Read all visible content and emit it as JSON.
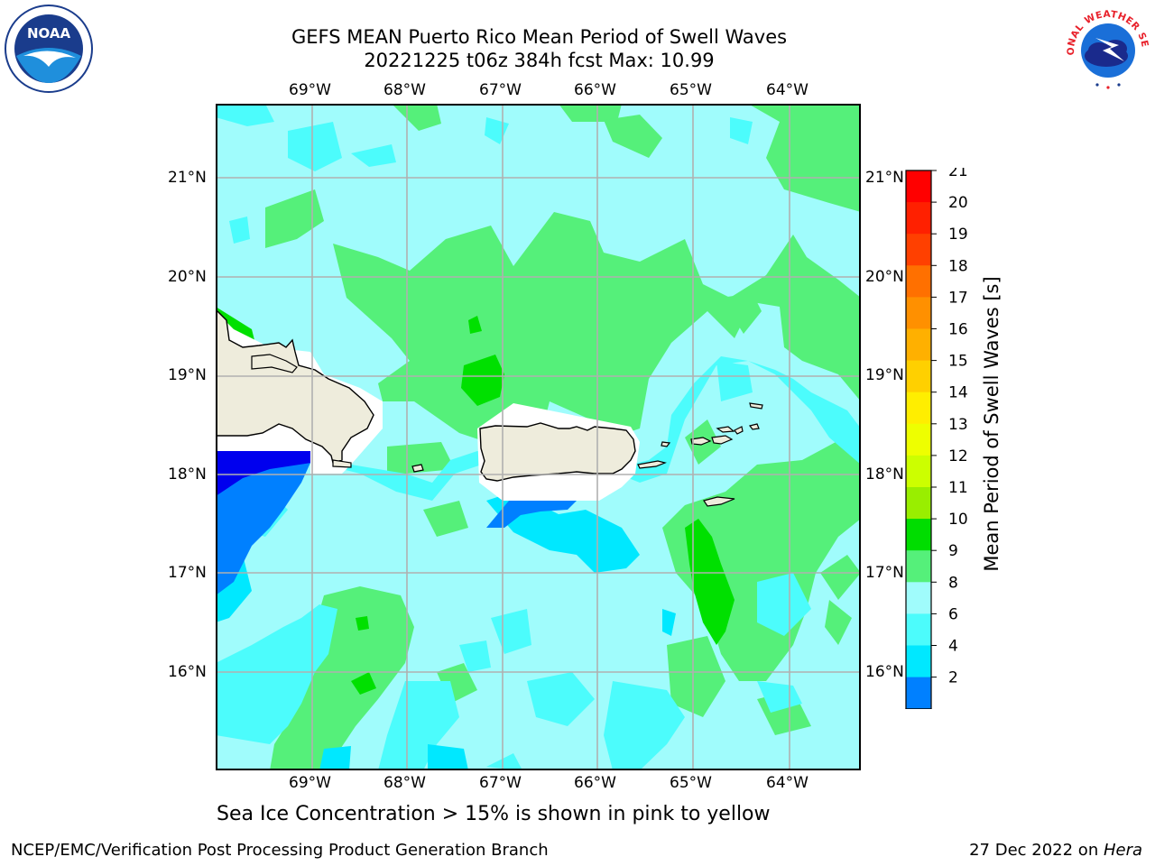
{
  "header": {
    "title_line1": "GEFS MEAN Puerto Rico Mean Period of Swell Waves",
    "title_line2": "20221225 t06z 384h fcst   Max: 10.99"
  },
  "logos": {
    "left": {
      "icon": "noaa-logo",
      "text": "NOAA",
      "ring_text": "NATIONAL OCEANIC AND ATMOSPHERIC ADMINISTRATION · U.S. DEPARTMENT OF COMMERCE"
    },
    "right": {
      "icon": "nws-logo",
      "ring_text": "NATIONAL WEATHER SERVICE"
    }
  },
  "map": {
    "lon_ticks": [
      "69°W",
      "68°W",
      "67°W",
      "66°W",
      "65°W",
      "64°W"
    ],
    "lat_ticks": [
      "21°N",
      "20°N",
      "19°N",
      "18°N",
      "17°N",
      "16°N"
    ],
    "colors": {
      "c2_4": "#0080ff",
      "c4_6": "#00e8ff",
      "c6_8": "#4cfcfc",
      "c8_9": "#a0fcfc",
      "c9_10": "#55f07a",
      "c10_11": "#00e000",
      "land": "#eeecdc",
      "ice_mask": "#ffffff",
      "below_2": "#0000ee"
    }
  },
  "colorbar": {
    "label": "Mean Period of Swell Waves [s]",
    "ticks": [
      "21",
      "20",
      "19",
      "18",
      "17",
      "16",
      "15",
      "14",
      "13",
      "12",
      "11",
      "10",
      "9",
      "8",
      "6",
      "4",
      "2"
    ],
    "colors": [
      "#ff0000",
      "#ff2000",
      "#ff4000",
      "#ff7000",
      "#ff9000",
      "#ffb000",
      "#ffd000",
      "#ffee00",
      "#eeff00",
      "#ccff00",
      "#99ee00",
      "#00dd00",
      "#55f07a",
      "#a0fcfc",
      "#4cfcfc",
      "#00e8ff",
      "#0080ff"
    ],
    "extend_color": "#0000ee"
  },
  "footer": {
    "note": "Sea Ice Concentration > 15% is shown in pink to yellow",
    "left": "NCEP/EMC/Verification Post Processing Product Generation Branch",
    "right_date": "27 Dec 2022 on ",
    "right_host": "Hera"
  }
}
